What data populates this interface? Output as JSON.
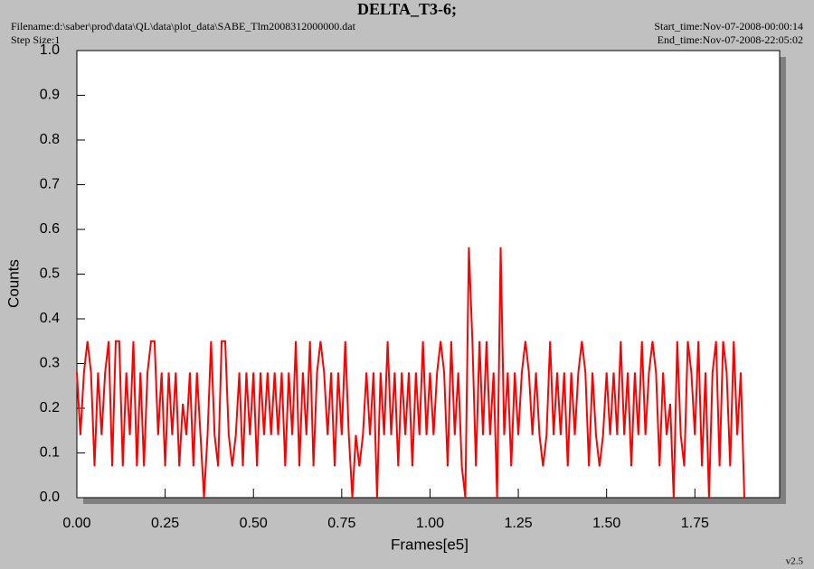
{
  "chart_data": {
    "type": "line",
    "title": "DELTA_T3-6;",
    "filename": "Filename:d:\\saber\\prod\\data\\QL\\data\\plot_data\\SABE_Tlm2008312000000.dat",
    "step_size": "Step Size:1",
    "start_time": "Start_time:Nov-07-2008-00:00:14",
    "end_time": "End_time:Nov-07-2008-22:05:02",
    "version": "v2.5",
    "x_label": "Frames[e5]",
    "y_label": "Counts",
    "xlim": [
      0,
      1.99
    ],
    "ylim": [
      0,
      1
    ],
    "xticks": [
      {
        "value": 0,
        "label": "0.00"
      },
      {
        "value": 0.25,
        "label": "0.25"
      },
      {
        "value": 0.5,
        "label": "0.50"
      },
      {
        "value": 0.75,
        "label": "0.75"
      },
      {
        "value": 1,
        "label": "1.00"
      },
      {
        "value": 1.25,
        "label": "1.25"
      },
      {
        "value": 1.5,
        "label": "1.50"
      },
      {
        "value": 1.75,
        "label": "1.75"
      }
    ],
    "yticks": [
      {
        "value": 0,
        "label": "0.0"
      },
      0.1,
      0.2,
      0.3,
      0.4,
      0.5,
      0.6,
      0.7,
      0.8,
      0.9,
      {
        "value": 1,
        "label": "1.0"
      }
    ],
    "x": [
      0,
      0.01,
      0.02,
      0.03,
      0.04,
      0.05,
      0.06,
      0.07,
      0.08,
      0.09,
      0.1,
      0.11,
      0.12,
      0.13,
      0.14,
      0.15,
      0.16,
      0.17,
      0.18,
      0.19,
      0.2,
      0.21,
      0.22,
      0.23,
      0.24,
      0.25,
      0.26,
      0.27,
      0.28,
      0.29,
      0.3,
      0.31,
      0.32,
      0.33,
      0.34,
      0.35,
      0.36,
      0.37,
      0.38,
      0.39,
      0.4,
      0.41,
      0.42,
      0.43,
      0.44,
      0.45,
      0.46,
      0.47,
      0.48,
      0.49,
      0.5,
      0.51,
      0.52,
      0.53,
      0.54,
      0.55,
      0.56,
      0.57,
      0.58,
      0.59,
      0.6,
      0.61,
      0.62,
      0.63,
      0.64,
      0.65,
      0.66,
      0.67,
      0.68,
      0.69,
      0.7,
      0.71,
      0.72,
      0.73,
      0.74,
      0.75,
      0.76,
      0.77,
      0.78,
      0.79,
      0.8,
      0.81,
      0.82,
      0.83,
      0.84,
      0.85,
      0.86,
      0.87,
      0.88,
      0.89,
      0.9,
      0.91,
      0.92,
      0.93,
      0.94,
      0.95,
      0.96,
      0.97,
      0.98,
      0.99,
      1,
      1.01,
      1.02,
      1.03,
      1.04,
      1.05,
      1.06,
      1.07,
      1.08,
      1.09,
      1.1,
      1.11,
      1.12,
      1.13,
      1.14,
      1.15,
      1.16,
      1.17,
      1.18,
      1.19,
      1.2,
      1.21,
      1.22,
      1.23,
      1.24,
      1.25,
      1.26,
      1.27,
      1.28,
      1.29,
      1.3,
      1.31,
      1.32,
      1.33,
      1.34,
      1.35,
      1.36,
      1.37,
      1.38,
      1.39,
      1.4,
      1.41,
      1.42,
      1.43,
      1.44,
      1.45,
      1.46,
      1.47,
      1.48,
      1.49,
      1.5,
      1.51,
      1.52,
      1.53,
      1.54,
      1.55,
      1.56,
      1.57,
      1.58,
      1.59,
      1.6,
      1.61,
      1.62,
      1.63,
      1.64,
      1.65,
      1.66,
      1.67,
      1.68,
      1.69,
      1.7,
      1.71,
      1.72,
      1.73,
      1.74,
      1.75,
      1.76,
      1.77,
      1.78,
      1.79,
      1.8,
      1.81,
      1.82,
      1.83,
      1.84,
      1.85,
      1.86,
      1.87,
      1.88,
      1.89
    ],
    "series": [
      {
        "color": "#ff0000",
        "values": [
          0.28,
          0.14,
          0.28,
          0.35,
          0.28,
          0.07,
          0.28,
          0.14,
          0.28,
          0.35,
          0.07,
          0.35,
          0.35,
          0.07,
          0.28,
          0.14,
          0.35,
          0.07,
          0.28,
          0.07,
          0.28,
          0.35,
          0.35,
          0.14,
          0.28,
          0.07,
          0.28,
          0.14,
          0.28,
          0.07,
          0.21,
          0.14,
          0.28,
          0.07,
          0.28,
          0.14,
          0,
          0.14,
          0.35,
          0.14,
          0.07,
          0.35,
          0.35,
          0.14,
          0.07,
          0.14,
          0.28,
          0.07,
          0.28,
          0.14,
          0.28,
          0.07,
          0.28,
          0.14,
          0.28,
          0.14,
          0.28,
          0.14,
          0.28,
          0.07,
          0.28,
          0.14,
          0.35,
          0.07,
          0.28,
          0.14,
          0.35,
          0.07,
          0.28,
          0.35,
          0.28,
          0.14,
          0.28,
          0.07,
          0.28,
          0.14,
          0.35,
          0.14,
          0,
          0.14,
          0.07,
          0.14,
          0.28,
          0.14,
          0.28,
          0,
          0.28,
          0.14,
          0.35,
          0.14,
          0.28,
          0.07,
          0.28,
          0.14,
          0.28,
          0.07,
          0.28,
          0.14,
          0.35,
          0.14,
          0.28,
          0.14,
          0.28,
          0.35,
          0.28,
          0.07,
          0.35,
          0.14,
          0.28,
          0.07,
          0,
          0.56,
          0.35,
          0.07,
          0.35,
          0.14,
          0.35,
          0.14,
          0.28,
          0,
          0.56,
          0.14,
          0.28,
          0.07,
          0.28,
          0.14,
          0.28,
          0.35,
          0.28,
          0.14,
          0.28,
          0.14,
          0.07,
          0.14,
          0.35,
          0.14,
          0.28,
          0.14,
          0.28,
          0.07,
          0.28,
          0.14,
          0.28,
          0.35,
          0.28,
          0.07,
          0.28,
          0.14,
          0.07,
          0.14,
          0.28,
          0.14,
          0.28,
          0.14,
          0.35,
          0.14,
          0.28,
          0.07,
          0.28,
          0.14,
          0.35,
          0.14,
          0.28,
          0.35,
          0.28,
          0.07,
          0.28,
          0.14,
          0.21,
          0,
          0.35,
          0.14,
          0.07,
          0.35,
          0.28,
          0.14,
          0.35,
          0.07,
          0.28,
          0,
          0.28,
          0.35,
          0.07,
          0.35,
          0.28,
          0.07,
          0.35,
          0.14,
          0.28,
          0
        ]
      }
    ]
  }
}
